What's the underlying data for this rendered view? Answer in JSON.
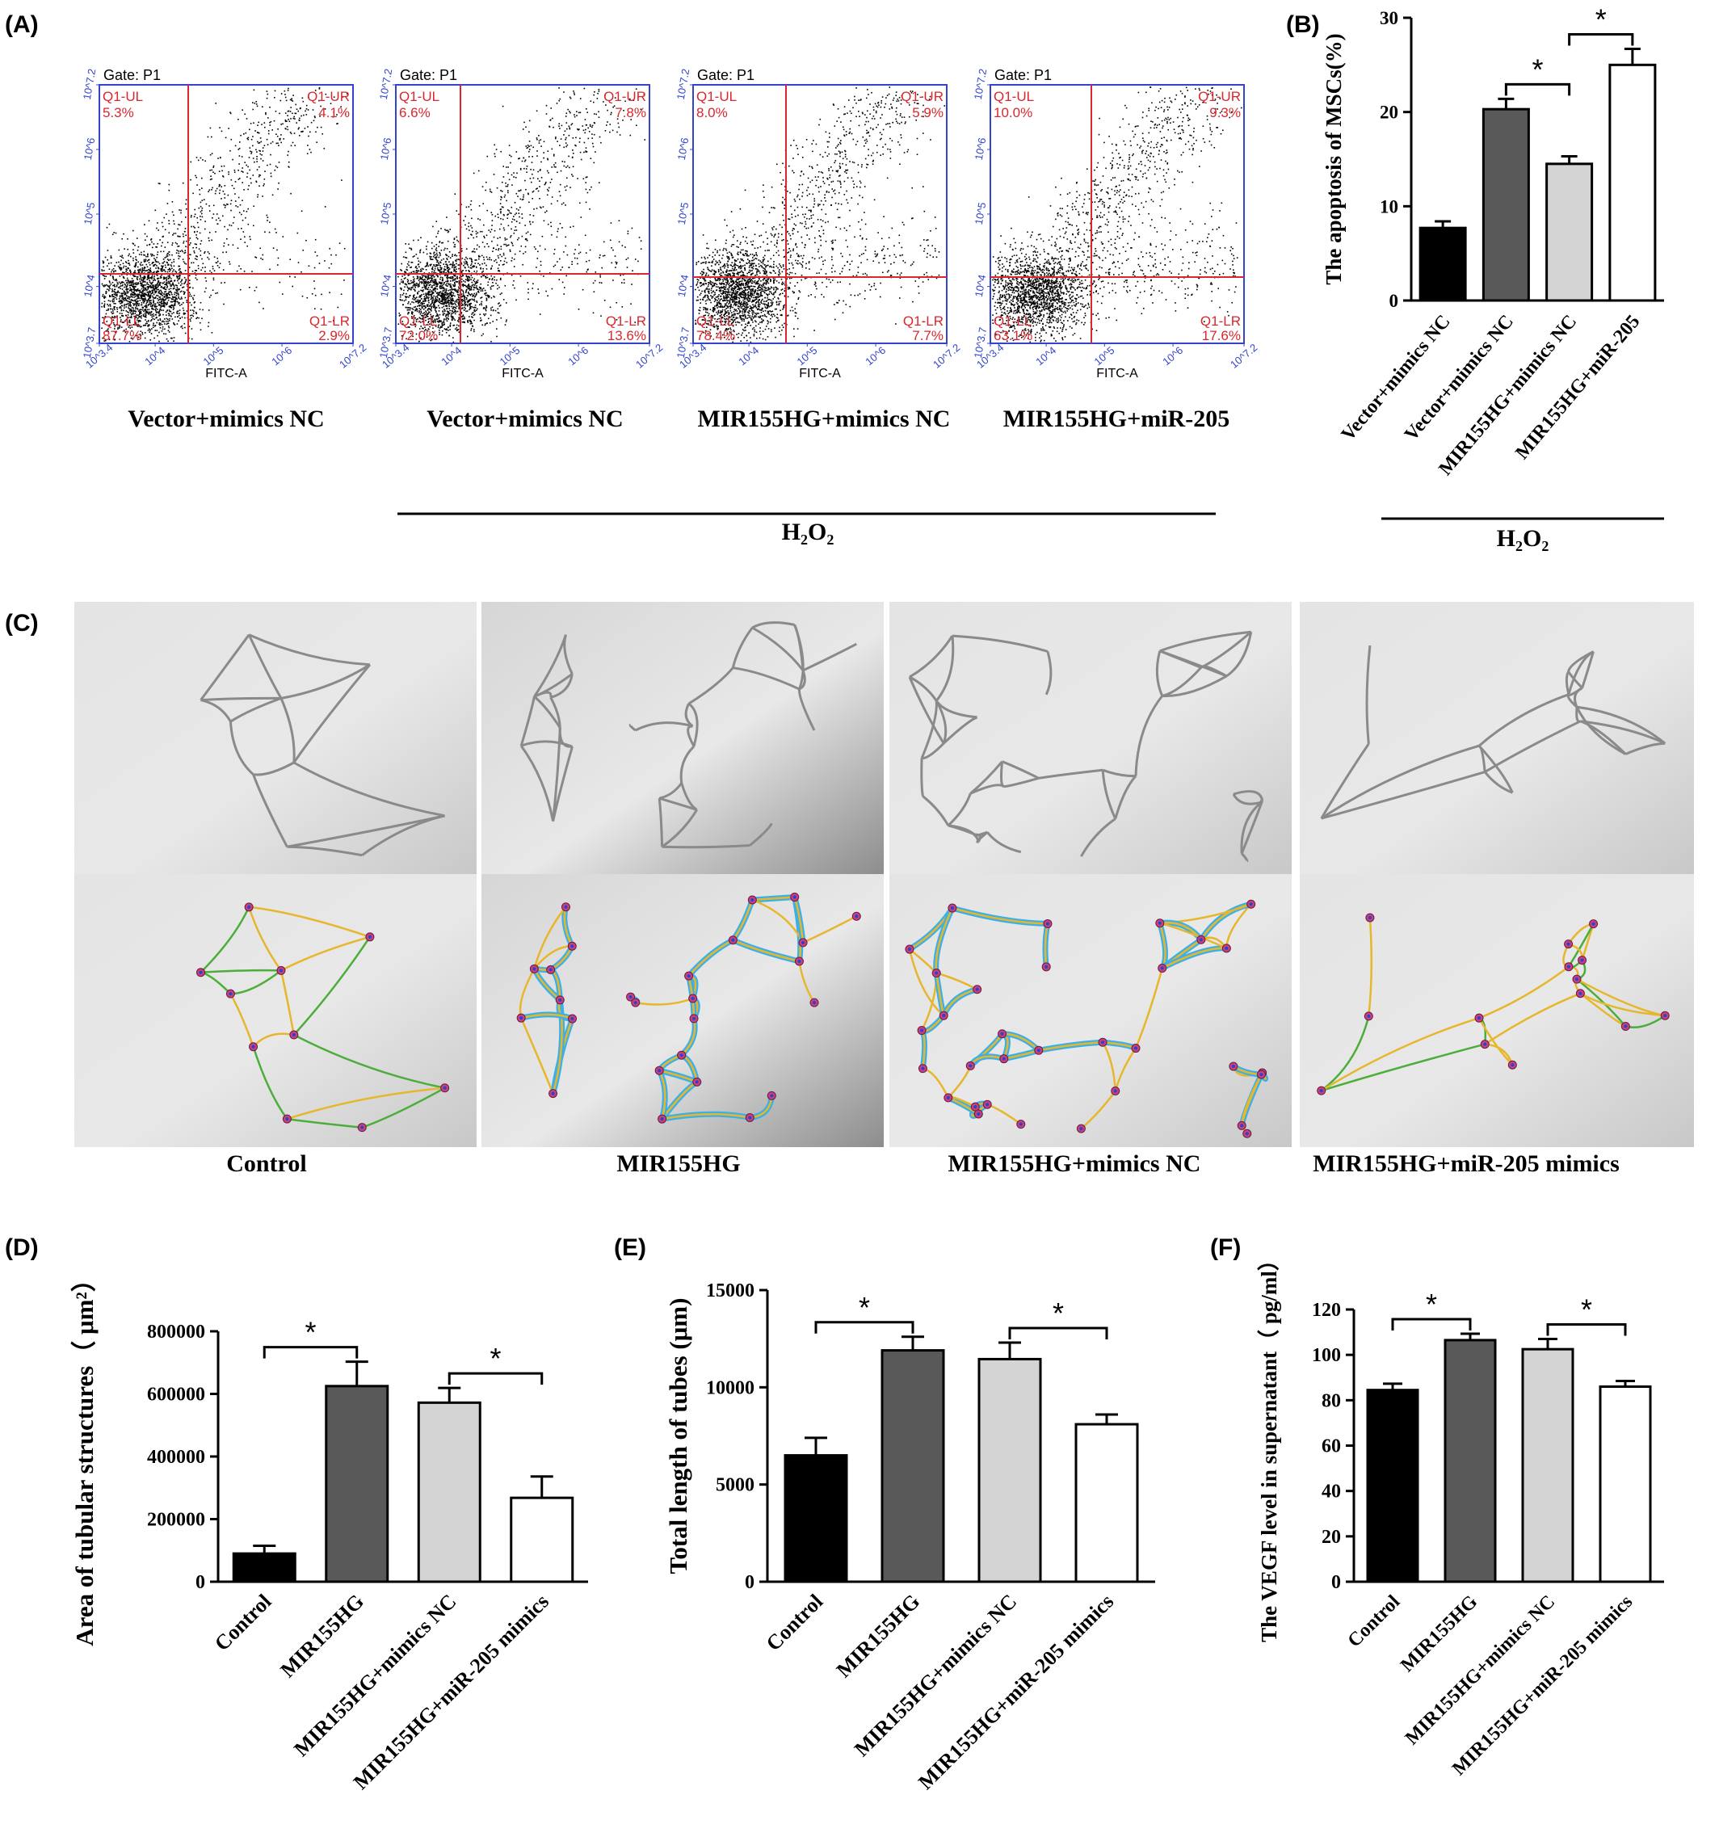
{
  "labels": {
    "A": "(A)",
    "B": "(B)",
    "C": "(C)",
    "D": "(D)",
    "E": "(E)",
    "F": "(F)"
  },
  "flow": {
    "gate": "Gate: P1",
    "xlabel": "FITC-A",
    "quadrant_names": {
      "ul": "Q1-UL",
      "ur": "Q1-UR",
      "ll": "Q1-LL",
      "lr": "Q1-LR"
    },
    "x_ticks": [
      "10^3.4",
      "10^4",
      "10^5",
      "10^6",
      "10^7.2"
    ],
    "y_ticks": [
      "10^3.7",
      "10^4",
      "10^5",
      "10^6",
      "10^7.2"
    ],
    "plots": [
      {
        "caption": "Vector+mimics NC",
        "ul": "5.3%",
        "ur": "4.1%",
        "ll": "87.7%",
        "lr": "2.9%"
      },
      {
        "caption": "Vector+mimics NC",
        "ul": "6.6%",
        "ur": "7.8%",
        "ll": "72.0%",
        "lr": "13.6%"
      },
      {
        "caption": "MIR155HG+mimics NC",
        "ul": "8.0%",
        "ur": "5.9%",
        "ll": "78.4%",
        "lr": "7.7%"
      },
      {
        "caption": "MIR155HG+miR-205",
        "ul": "10.0%",
        "ur": "9.3%",
        "ll": "63.1%",
        "lr": "17.6%"
      }
    ],
    "group_label": "H₂O₂"
  },
  "images": {
    "captions": [
      "Control",
      "MIR155HG",
      "MIR155HG+mimics NC",
      "MIR155HG+miR-205 mimics"
    ]
  },
  "chart_data": [
    {
      "id": "B",
      "type": "bar",
      "ylabel": "The apoptosis of MSCs(%)",
      "ylim": [
        0,
        30
      ],
      "yticks": [
        0,
        10,
        20,
        30
      ],
      "categories": [
        "Vector+mimics NC",
        "Vector+mimics NC",
        "MIR155HG+mimics NC",
        "MIR155HG+miR-205"
      ],
      "values": [
        7.7,
        20.3,
        14.5,
        25.0
      ],
      "errors": [
        0.7,
        1.1,
        0.8,
        1.7
      ],
      "colors": [
        "#000000",
        "#595959",
        "#d4d4d4",
        "#ffffff"
      ],
      "group_label": "H₂O₂",
      "significance": [
        {
          "from": 1,
          "to": 2,
          "label": "*"
        },
        {
          "from": 2,
          "to": 3,
          "label": "*"
        }
      ]
    },
    {
      "id": "D",
      "type": "bar",
      "ylabel": "Area of tubular structures（ μm²）",
      "ylim": [
        0,
        800000
      ],
      "yticks": [
        0,
        200000,
        400000,
        600000,
        800000
      ],
      "categories": [
        "Control",
        "MIR155HG",
        "MIR155HG+mimics NC",
        "MIR155HG+miR-205 mimics"
      ],
      "values": [
        90000,
        625000,
        572000,
        268000
      ],
      "errors": [
        25000,
        78000,
        47000,
        68000
      ],
      "colors": [
        "#000000",
        "#595959",
        "#d4d4d4",
        "#ffffff"
      ],
      "significance": [
        {
          "from": 0,
          "to": 1,
          "label": "*"
        },
        {
          "from": 2,
          "to": 3,
          "label": "*"
        }
      ]
    },
    {
      "id": "E",
      "type": "bar",
      "ylabel": "Total length of tubes (μm)",
      "ylim": [
        0,
        15000
      ],
      "yticks": [
        0,
        5000,
        10000,
        15000
      ],
      "categories": [
        "Control",
        "MIR155HG",
        "MIR155HG+mimics NC",
        "MIR155HG+miR-205 mimics"
      ],
      "values": [
        6500,
        11900,
        11450,
        8100
      ],
      "errors": [
        900,
        700,
        850,
        500
      ],
      "colors": [
        "#000000",
        "#595959",
        "#d4d4d4",
        "#ffffff"
      ],
      "significance": [
        {
          "from": 0,
          "to": 1,
          "label": "*"
        },
        {
          "from": 2,
          "to": 3,
          "label": "*"
        }
      ]
    },
    {
      "id": "F",
      "type": "bar",
      "ylabel": "The VEGF level in supernatant（ pg/ml）",
      "ylim": [
        0,
        120
      ],
      "yticks": [
        0,
        20,
        40,
        60,
        80,
        100,
        120
      ],
      "categories": [
        "Control",
        "MIR155HG",
        "MIR155HG+mimics NC",
        "MIR155HG+miR-205 mimics"
      ],
      "values": [
        84.5,
        106.5,
        102.5,
        86.0
      ],
      "errors": [
        2.8,
        2.8,
        4.5,
        2.5
      ],
      "colors": [
        "#000000",
        "#595959",
        "#d4d4d4",
        "#ffffff"
      ],
      "significance": [
        {
          "from": 0,
          "to": 1,
          "label": "*"
        },
        {
          "from": 2,
          "to": 3,
          "label": "*"
        }
      ]
    }
  ]
}
